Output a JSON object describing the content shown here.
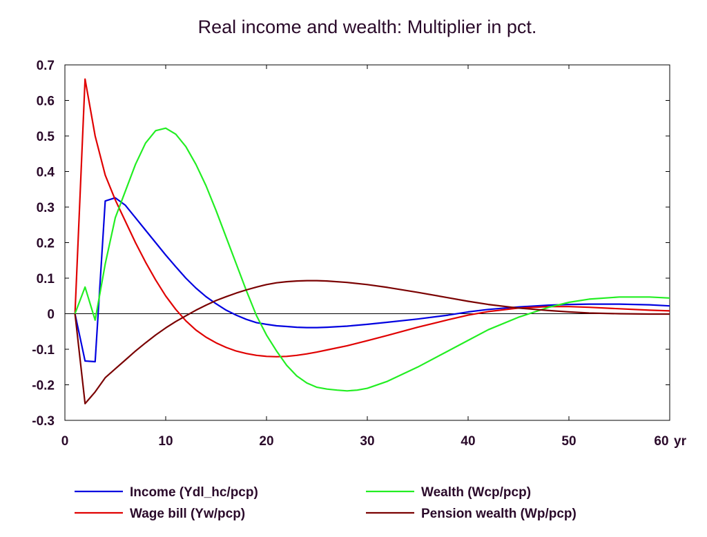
{
  "chart_data": {
    "type": "line",
    "title": "Real income and wealth: Multiplier in pct.",
    "xlabel": "",
    "ylabel": "",
    "x_unit_label": "yr",
    "xlim": [
      0,
      60
    ],
    "ylim": [
      -0.3,
      0.7
    ],
    "x_ticks": [
      0,
      10,
      20,
      30,
      40,
      50,
      60
    ],
    "x_tick_labels": [
      "0",
      "10",
      "20",
      "30",
      "40",
      "50",
      "60"
    ],
    "y_ticks": [
      -0.3,
      -0.2,
      -0.1,
      0,
      0.1,
      0.2,
      0.3,
      0.4,
      0.5,
      0.6,
      0.7
    ],
    "y_tick_labels": [
      "-0.3",
      "-0.2",
      "-0.1",
      "0",
      "0.1",
      "0.2",
      "0.3",
      "0.4",
      "0.5",
      "0.6",
      "0.7"
    ],
    "grid": false,
    "zero_line": true,
    "legend_position": "bottom",
    "series": [
      {
        "name": "Income (Ydl_hc/pcp)",
        "color": "#0000e0",
        "x": [
          1,
          2,
          3,
          4,
          5,
          6,
          7,
          8,
          9,
          10,
          11,
          12,
          13,
          14,
          15,
          16,
          17,
          18,
          19,
          20,
          21,
          22,
          23,
          24,
          25,
          26,
          28,
          30,
          32,
          35,
          38,
          40,
          42,
          45,
          48,
          50,
          52,
          55,
          58,
          60
        ],
        "y": [
          0.0,
          -0.133,
          -0.135,
          0.317,
          0.326,
          0.305,
          0.27,
          0.235,
          0.2,
          0.165,
          0.132,
          0.1,
          0.072,
          0.048,
          0.028,
          0.01,
          -0.004,
          -0.016,
          -0.025,
          -0.03,
          -0.034,
          -0.036,
          -0.038,
          -0.039,
          -0.039,
          -0.038,
          -0.035,
          -0.03,
          -0.024,
          -0.015,
          -0.004,
          0.005,
          0.012,
          0.019,
          0.024,
          0.026,
          0.027,
          0.027,
          0.025,
          0.022
        ]
      },
      {
        "name": "Wage bill (Yw/pcp)",
        "color": "#e00000",
        "x": [
          1,
          2,
          3,
          4,
          5,
          6,
          7,
          8,
          9,
          10,
          11,
          12,
          13,
          14,
          15,
          16,
          17,
          18,
          19,
          20,
          21,
          22,
          23,
          24,
          25,
          26,
          28,
          30,
          32,
          35,
          38,
          40,
          42,
          45,
          48,
          50,
          52,
          55,
          58,
          60
        ],
        "y": [
          0.0,
          0.66,
          0.5,
          0.39,
          0.32,
          0.26,
          0.2,
          0.145,
          0.095,
          0.05,
          0.012,
          -0.02,
          -0.046,
          -0.066,
          -0.082,
          -0.095,
          -0.105,
          -0.112,
          -0.117,
          -0.12,
          -0.121,
          -0.12,
          -0.117,
          -0.113,
          -0.108,
          -0.102,
          -0.09,
          -0.076,
          -0.061,
          -0.038,
          -0.017,
          -0.004,
          0.006,
          0.016,
          0.02,
          0.02,
          0.018,
          0.014,
          0.01,
          0.008
        ]
      },
      {
        "name": "Wealth (Wcp/pcp)",
        "color": "#22ee22",
        "x": [
          1,
          2,
          3,
          4,
          5,
          6,
          7,
          8,
          9,
          10,
          11,
          12,
          13,
          14,
          15,
          16,
          17,
          18,
          19,
          20,
          21,
          22,
          23,
          24,
          25,
          26,
          27,
          28,
          29,
          30,
          32,
          35,
          38,
          40,
          42,
          45,
          48,
          50,
          52,
          55,
          58,
          60
        ],
        "y": [
          0.0,
          0.075,
          -0.018,
          0.14,
          0.27,
          0.345,
          0.42,
          0.48,
          0.515,
          0.522,
          0.505,
          0.47,
          0.42,
          0.36,
          0.29,
          0.215,
          0.14,
          0.065,
          -0.005,
          -0.06,
          -0.105,
          -0.145,
          -0.175,
          -0.195,
          -0.207,
          -0.212,
          -0.215,
          -0.217,
          -0.215,
          -0.21,
          -0.19,
          -0.15,
          -0.105,
          -0.075,
          -0.045,
          -0.01,
          0.018,
          0.032,
          0.041,
          0.047,
          0.047,
          0.044
        ]
      },
      {
        "name": "Pension wealth (Wp/pcp)",
        "color": "#7a0000",
        "x": [
          1,
          2,
          3,
          4,
          5,
          6,
          7,
          8,
          9,
          10,
          11,
          12,
          13,
          14,
          15,
          16,
          17,
          18,
          19,
          20,
          21,
          22,
          23,
          24,
          25,
          26,
          28,
          30,
          32,
          35,
          38,
          40,
          42,
          45,
          48,
          50,
          52,
          55,
          58,
          60
        ],
        "y": [
          0.0,
          -0.253,
          -0.22,
          -0.18,
          -0.155,
          -0.13,
          -0.105,
          -0.082,
          -0.06,
          -0.04,
          -0.022,
          -0.006,
          0.01,
          0.024,
          0.037,
          0.048,
          0.058,
          0.067,
          0.075,
          0.082,
          0.087,
          0.09,
          0.092,
          0.093,
          0.093,
          0.092,
          0.088,
          0.082,
          0.074,
          0.06,
          0.045,
          0.035,
          0.026,
          0.016,
          0.009,
          0.005,
          0.002,
          0.0,
          -0.001,
          -0.001
        ]
      }
    ]
  }
}
